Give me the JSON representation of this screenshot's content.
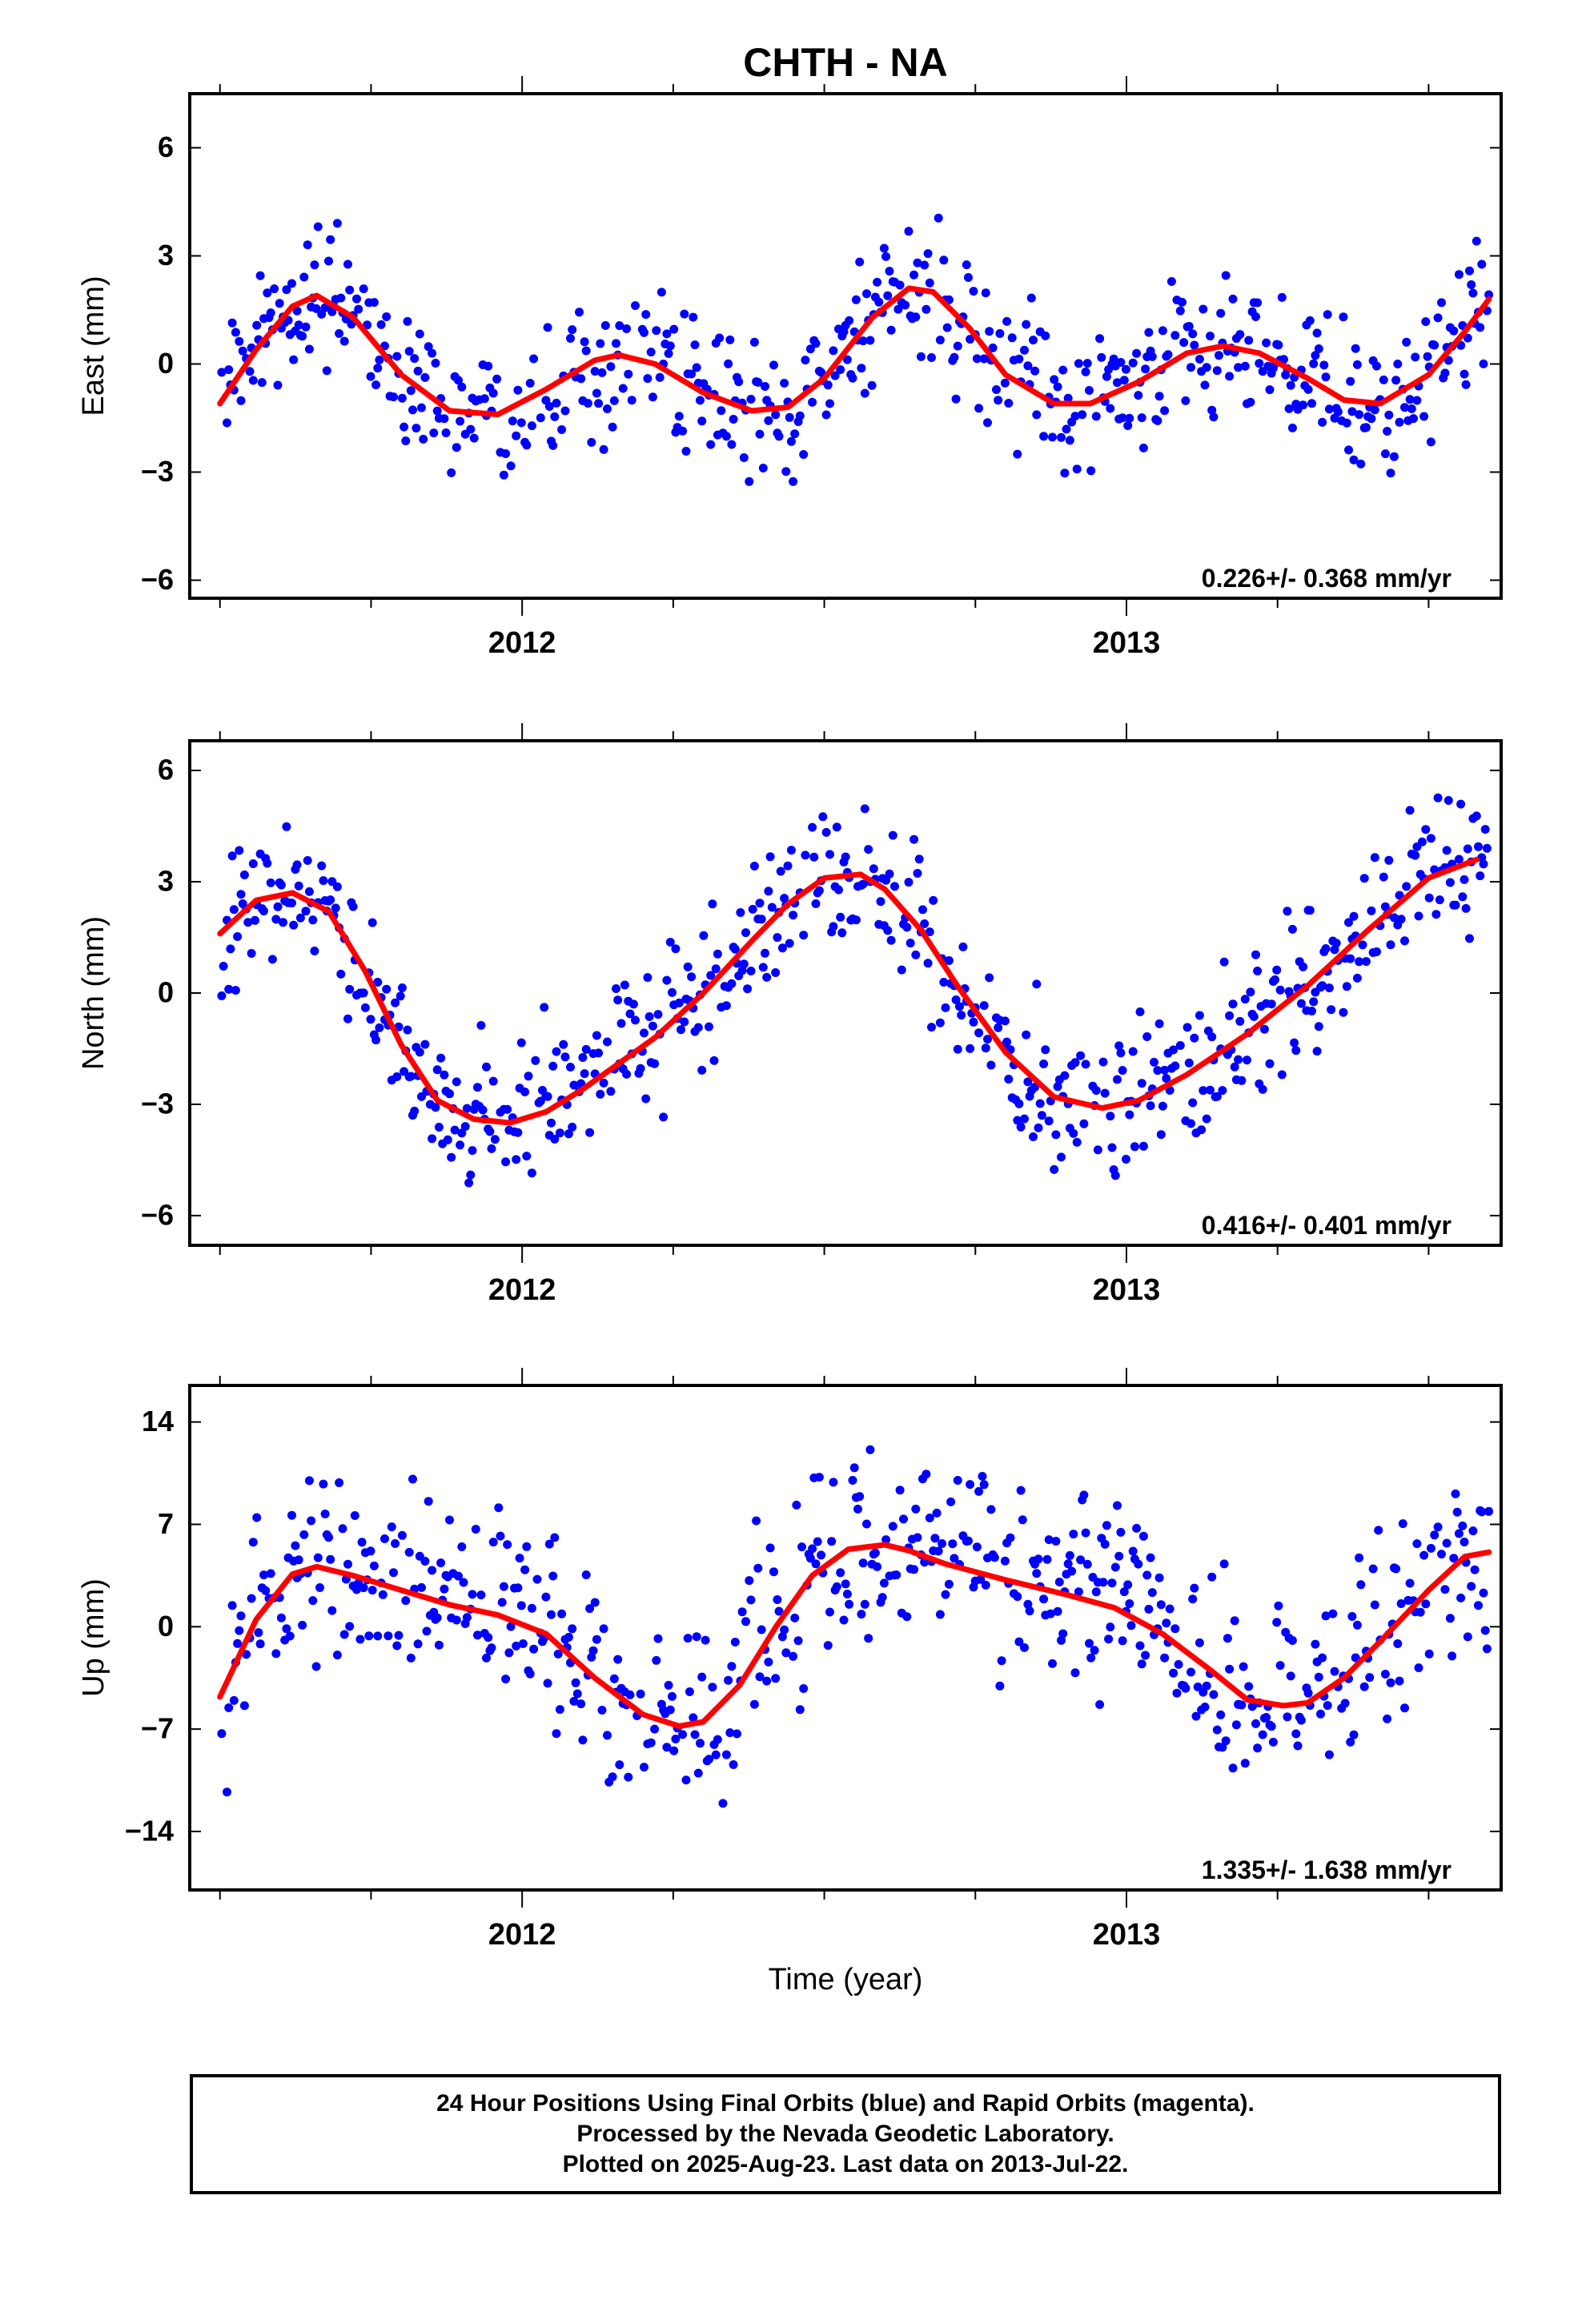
{
  "title": "CHTH - NA",
  "xlabel": "Time (year)",
  "footer": {
    "line1": "24 Hour Positions Using Final Orbits (blue) and Rapid Orbits (magenta).",
    "line2": "Processed by the Nevada Geodetic Laboratory.",
    "line3": "Plotted on 2025-Aug-23. Last data on 2013-Jul-22."
  },
  "colors": {
    "points": "#0000ff",
    "fit": "#ff0000",
    "frame": "#000000"
  },
  "chart_data": [
    {
      "type": "scatter",
      "component": "east",
      "ylabel": "East (mm)",
      "rate_text": "0.226+/- 0.368 mm/yr",
      "xlim": [
        2011.45,
        2013.62
      ],
      "ylim": [
        -6.5,
        7.5
      ],
      "yticks": [
        -6,
        -3,
        0,
        3,
        6
      ],
      "xticks_major": [
        2012,
        2013
      ],
      "xtick_labels": [
        "2012",
        "2013"
      ],
      "fit": {
        "x": [
          2011.5,
          2011.56,
          2011.62,
          2011.66,
          2011.72,
          2011.8,
          2011.88,
          2011.96,
          2012.04,
          2012.12,
          2012.16,
          2012.22,
          2012.3,
          2012.38,
          2012.44,
          2012.5,
          2012.58,
          2012.64,
          2012.68,
          2012.74,
          2012.8,
          2012.88,
          2012.94,
          2013.02,
          2013.1,
          2013.16,
          2013.22,
          2013.3,
          2013.36,
          2013.42,
          2013.5,
          2013.56,
          2013.6
        ],
        "y": [
          -1.1,
          0.4,
          1.6,
          1.9,
          1.3,
          -0.3,
          -1.3,
          -1.4,
          -0.7,
          0.1,
          0.25,
          0.0,
          -0.8,
          -1.3,
          -1.2,
          -0.4,
          1.3,
          2.1,
          2.0,
          1.0,
          -0.3,
          -1.1,
          -1.1,
          -0.5,
          0.3,
          0.5,
          0.3,
          -0.4,
          -1.0,
          -1.1,
          -0.3,
          0.9,
          1.8
        ]
      }
    },
    {
      "type": "scatter",
      "component": "north",
      "ylabel": "North (mm)",
      "rate_text": "0.416+/- 0.401 mm/yr",
      "xlim": [
        2011.45,
        2013.62
      ],
      "ylim": [
        -6.8,
        6.8
      ],
      "yticks": [
        -6,
        -3,
        0,
        3,
        6
      ],
      "xticks_major": [
        2012,
        2013
      ],
      "xtick_labels": [
        "2012",
        "2013"
      ],
      "fit": {
        "x": [
          2011.5,
          2011.56,
          2011.62,
          2011.68,
          2011.74,
          2011.8,
          2011.86,
          2011.92,
          2011.98,
          2012.04,
          2012.1,
          2012.16,
          2012.22,
          2012.3,
          2012.38,
          2012.44,
          2012.5,
          2012.56,
          2012.6,
          2012.66,
          2012.72,
          2012.8,
          2012.88,
          2012.96,
          2013.02,
          2013.1,
          2013.2,
          2013.3,
          2013.4,
          2013.5,
          2013.58
        ],
        "y": [
          1.6,
          2.5,
          2.7,
          2.2,
          0.6,
          -1.4,
          -2.9,
          -3.4,
          -3.5,
          -3.2,
          -2.6,
          -1.9,
          -1.2,
          0.0,
          1.4,
          2.4,
          3.1,
          3.2,
          2.8,
          1.7,
          0.2,
          -1.6,
          -2.8,
          -3.1,
          -2.9,
          -2.2,
          -1.1,
          0.2,
          1.7,
          3.1,
          3.6
        ]
      }
    },
    {
      "type": "scatter",
      "component": "up",
      "ylabel": "Up (mm)",
      "rate_text": "1.335+/- 1.638 mm/yr",
      "xlim": [
        2011.45,
        2013.62
      ],
      "ylim": [
        -18,
        16.5
      ],
      "yticks": [
        -14,
        -7,
        0,
        7,
        14
      ],
      "xticks_major": [
        2012,
        2013
      ],
      "xtick_labels": [
        "2012",
        "2013"
      ],
      "fit": {
        "x": [
          2011.5,
          2011.56,
          2011.62,
          2011.66,
          2011.72,
          2011.8,
          2011.88,
          2011.96,
          2012.04,
          2012.12,
          2012.2,
          2012.26,
          2012.3,
          2012.36,
          2012.42,
          2012.48,
          2012.54,
          2012.6,
          2012.64,
          2012.7,
          2012.8,
          2012.9,
          2012.98,
          2013.06,
          2013.14,
          2013.2,
          2013.26,
          2013.3,
          2013.36,
          2013.42,
          2013.5,
          2013.56,
          2013.6
        ],
        "y": [
          -4.8,
          0.5,
          3.6,
          4.1,
          3.5,
          2.5,
          1.5,
          0.8,
          -0.5,
          -3.5,
          -6.0,
          -6.8,
          -6.5,
          -4.0,
          0.0,
          3.5,
          5.3,
          5.6,
          5.2,
          4.3,
          3.2,
          2.2,
          1.3,
          -0.5,
          -3.0,
          -5.0,
          -5.4,
          -5.2,
          -3.5,
          -1.0,
          2.5,
          4.8,
          5.1
        ]
      }
    }
  ]
}
